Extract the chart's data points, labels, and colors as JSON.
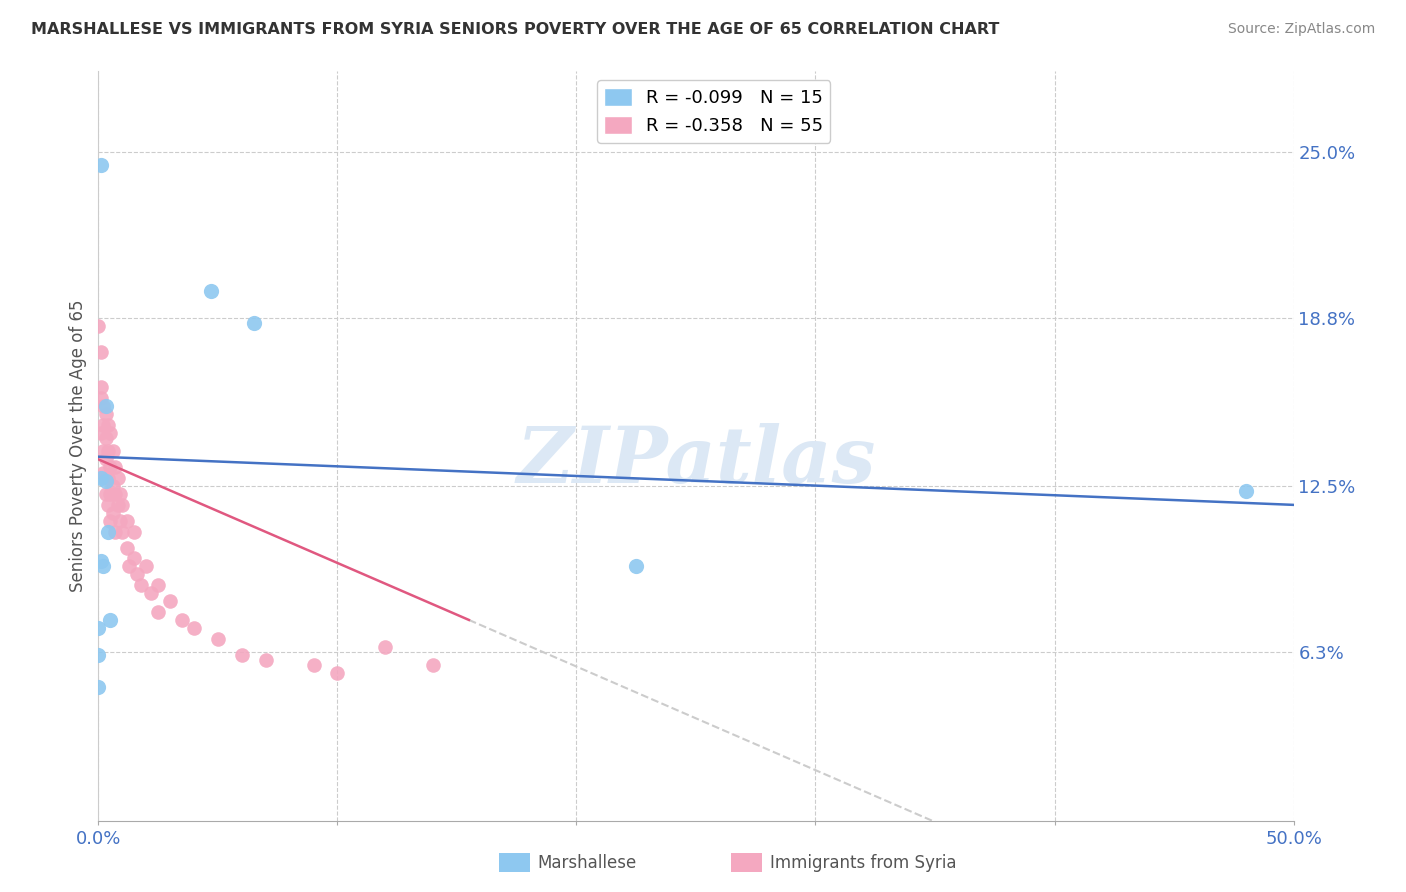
{
  "title": "MARSHALLESE VS IMMIGRANTS FROM SYRIA SENIORS POVERTY OVER THE AGE OF 65 CORRELATION CHART",
  "source": "Source: ZipAtlas.com",
  "xlabel": "",
  "ylabel": "Seniors Poverty Over the Age of 65",
  "xlim": [
    0,
    0.5
  ],
  "ylim": [
    0.0,
    0.28
  ],
  "ytick_positions": [
    0.063,
    0.125,
    0.188,
    0.25
  ],
  "ytick_labels": [
    "6.3%",
    "12.5%",
    "18.8%",
    "25.0%"
  ],
  "marshallese_R": -0.099,
  "marshallese_N": 15,
  "syria_R": -0.358,
  "syria_N": 55,
  "marshallese_color": "#8EC8F0",
  "syria_color": "#F4A8C0",
  "marshallese_line_color": "#4472C4",
  "syria_line_color": "#E05880",
  "watermark": "ZIPatlas",
  "marshallese_x": [
    0.001,
    0.047,
    0.065,
    0.003,
    0.001,
    0.003,
    0.004,
    0.001,
    0.002,
    0.48,
    0.005,
    0.225,
    0.0,
    0.0,
    0.0
  ],
  "marshallese_y": [
    0.245,
    0.198,
    0.186,
    0.155,
    0.128,
    0.127,
    0.108,
    0.097,
    0.095,
    0.123,
    0.075,
    0.095,
    0.072,
    0.062,
    0.05
  ],
  "syria_x": [
    0.0,
    0.001,
    0.001,
    0.001,
    0.001,
    0.002,
    0.002,
    0.002,
    0.002,
    0.003,
    0.003,
    0.003,
    0.003,
    0.003,
    0.004,
    0.004,
    0.004,
    0.004,
    0.005,
    0.005,
    0.005,
    0.005,
    0.006,
    0.006,
    0.006,
    0.007,
    0.007,
    0.007,
    0.008,
    0.008,
    0.009,
    0.009,
    0.01,
    0.01,
    0.012,
    0.012,
    0.013,
    0.015,
    0.015,
    0.016,
    0.018,
    0.02,
    0.022,
    0.025,
    0.025,
    0.03,
    0.035,
    0.04,
    0.05,
    0.06,
    0.07,
    0.09,
    0.1,
    0.12,
    0.14
  ],
  "syria_y": [
    0.185,
    0.175,
    0.162,
    0.158,
    0.145,
    0.155,
    0.148,
    0.138,
    0.13,
    0.152,
    0.143,
    0.135,
    0.128,
    0.122,
    0.148,
    0.138,
    0.128,
    0.118,
    0.145,
    0.132,
    0.122,
    0.112,
    0.138,
    0.125,
    0.115,
    0.132,
    0.122,
    0.108,
    0.128,
    0.118,
    0.122,
    0.112,
    0.118,
    0.108,
    0.112,
    0.102,
    0.095,
    0.108,
    0.098,
    0.092,
    0.088,
    0.095,
    0.085,
    0.088,
    0.078,
    0.082,
    0.075,
    0.072,
    0.068,
    0.062,
    0.06,
    0.058,
    0.055,
    0.065,
    0.058
  ]
}
